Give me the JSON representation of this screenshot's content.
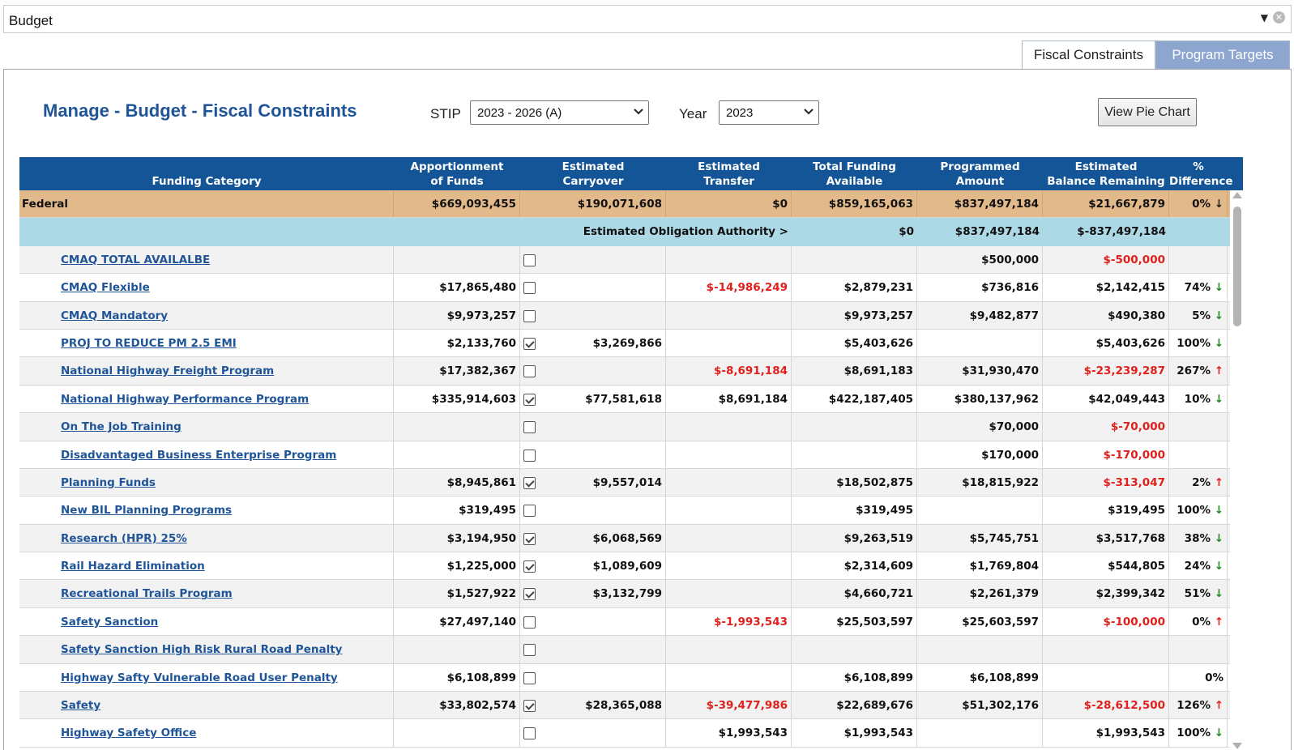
{
  "header": {
    "title": "Budget"
  },
  "tabs": [
    {
      "label": "Fiscal Constraints",
      "active": true
    },
    {
      "label": "Program Targets",
      "active": false
    }
  ],
  "page": {
    "title": "Manage - Budget - Fiscal Constraints",
    "stip_label": "STIP",
    "stip_value": "2023 - 2026 (A)",
    "year_label": "Year",
    "year_value": "2023",
    "pie_button": "View Pie Chart"
  },
  "table": {
    "columns": [
      [
        "Funding Category"
      ],
      [
        "Apportionment",
        "of Funds"
      ],
      [
        "Estimated",
        "Carryover"
      ],
      [
        "Estimated",
        "Transfer"
      ],
      [
        "Total Funding",
        "Available"
      ],
      [
        "Programmed",
        "Amount"
      ],
      [
        "Estimated",
        "Balance Remaining"
      ],
      [
        "%",
        "Difference"
      ]
    ],
    "federal": {
      "name": "Federal",
      "apportionment": "$669,093,455",
      "carryover": "$190,071,608",
      "transfer": "$0",
      "total": "$859,165,063",
      "programmed": "$837,497,184",
      "balance": "$21,667,879",
      "pct": "0%",
      "trend": "down-dark"
    },
    "obligation": {
      "label": "Estimated Obligation Authority >",
      "total": "$0",
      "programmed": "$837,497,184",
      "balance": "$-837,497,184"
    },
    "rows": [
      {
        "name": "CMAQ TOTAL AVAILALBE",
        "apportionment": "",
        "checked": false,
        "carryover": "",
        "transfer": "",
        "total": "",
        "programmed": "$500,000",
        "balance": "$-500,000",
        "pct": "",
        "trend": ""
      },
      {
        "name": "CMAQ Flexible",
        "apportionment": "$17,865,480",
        "checked": false,
        "carryover": "",
        "transfer": "$-14,986,249",
        "total": "$2,879,231",
        "programmed": "$736,816",
        "balance": "$2,142,415",
        "pct": "74%",
        "trend": "down"
      },
      {
        "name": "CMAQ Mandatory",
        "apportionment": "$9,973,257",
        "checked": false,
        "carryover": "",
        "transfer": "",
        "total": "$9,973,257",
        "programmed": "$9,482,877",
        "balance": "$490,380",
        "pct": "5%",
        "trend": "down"
      },
      {
        "name": "PROJ TO REDUCE PM 2.5 EMI",
        "apportionment": "$2,133,760",
        "checked": true,
        "carryover": "$3,269,866",
        "transfer": "",
        "total": "$5,403,626",
        "programmed": "",
        "balance": "$5,403,626",
        "pct": "100%",
        "trend": "down"
      },
      {
        "name": "National Highway Freight Program",
        "apportionment": "$17,382,367",
        "checked": false,
        "carryover": "",
        "transfer": "$-8,691,184",
        "total": "$8,691,183",
        "programmed": "$31,930,470",
        "balance": "$-23,239,287",
        "pct": "267%",
        "trend": "up"
      },
      {
        "name": "National Highway Performance Program",
        "apportionment": "$335,914,603",
        "checked": true,
        "carryover": "$77,581,618",
        "transfer": "$8,691,184",
        "total": "$422,187,405",
        "programmed": "$380,137,962",
        "balance": "$42,049,443",
        "pct": "10%",
        "trend": "down"
      },
      {
        "name": "On The Job Training",
        "apportionment": "",
        "checked": false,
        "carryover": "",
        "transfer": "",
        "total": "",
        "programmed": "$70,000",
        "balance": "$-70,000",
        "pct": "",
        "trend": ""
      },
      {
        "name": "Disadvantaged Business Enterprise Program",
        "apportionment": "",
        "checked": false,
        "carryover": "",
        "transfer": "",
        "total": "",
        "programmed": "$170,000",
        "balance": "$-170,000",
        "pct": "",
        "trend": ""
      },
      {
        "name": "Planning Funds",
        "apportionment": "$8,945,861",
        "checked": true,
        "carryover": "$9,557,014",
        "transfer": "",
        "total": "$18,502,875",
        "programmed": "$18,815,922",
        "balance": "$-313,047",
        "pct": "2%",
        "trend": "up"
      },
      {
        "name": "New BIL Planning Programs",
        "apportionment": "$319,495",
        "checked": false,
        "carryover": "",
        "transfer": "",
        "total": "$319,495",
        "programmed": "",
        "balance": "$319,495",
        "pct": "100%",
        "trend": "down"
      },
      {
        "name": "Research (HPR) 25%",
        "apportionment": "$3,194,950",
        "checked": true,
        "carryover": "$6,068,569",
        "transfer": "",
        "total": "$9,263,519",
        "programmed": "$5,745,751",
        "balance": "$3,517,768",
        "pct": "38%",
        "trend": "down"
      },
      {
        "name": "Rail Hazard Elimination",
        "apportionment": "$1,225,000",
        "checked": true,
        "carryover": "$1,089,609",
        "transfer": "",
        "total": "$2,314,609",
        "programmed": "$1,769,804",
        "balance": "$544,805",
        "pct": "24%",
        "trend": "down"
      },
      {
        "name": "Recreational Trails Program",
        "apportionment": "$1,527,922",
        "checked": true,
        "carryover": "$3,132,799",
        "transfer": "",
        "total": "$4,660,721",
        "programmed": "$2,261,379",
        "balance": "$2,399,342",
        "pct": "51%",
        "trend": "down"
      },
      {
        "name": "Safety Sanction",
        "apportionment": "$27,497,140",
        "checked": false,
        "carryover": "",
        "transfer": "$-1,993,543",
        "total": "$25,503,597",
        "programmed": "$25,603,597",
        "balance": "$-100,000",
        "pct": "0%",
        "trend": "up"
      },
      {
        "name": "Safety Sanction High Risk Rural Road Penalty",
        "apportionment": "",
        "checked": false,
        "carryover": "",
        "transfer": "",
        "total": "",
        "programmed": "",
        "balance": "",
        "pct": "",
        "trend": ""
      },
      {
        "name": "Highway Safty Vulnerable Road User Penalty",
        "apportionment": "$6,108,899",
        "checked": false,
        "carryover": "",
        "transfer": "",
        "total": "$6,108,899",
        "programmed": "$6,108,899",
        "balance": "",
        "pct": "0%",
        "trend": ""
      },
      {
        "name": "Safety",
        "apportionment": "$33,802,574",
        "checked": true,
        "carryover": "$28,365,088",
        "transfer": "$-39,477,986",
        "total": "$22,689,676",
        "programmed": "$51,302,176",
        "balance": "$-28,612,500",
        "pct": "126%",
        "trend": "up"
      },
      {
        "name": "Highway Safety Office",
        "apportionment": "",
        "checked": false,
        "carryover": "",
        "transfer": "$1,993,543",
        "total": "$1,993,543",
        "programmed": "",
        "balance": "$1,993,543",
        "pct": "100%",
        "trend": "down"
      }
    ]
  }
}
